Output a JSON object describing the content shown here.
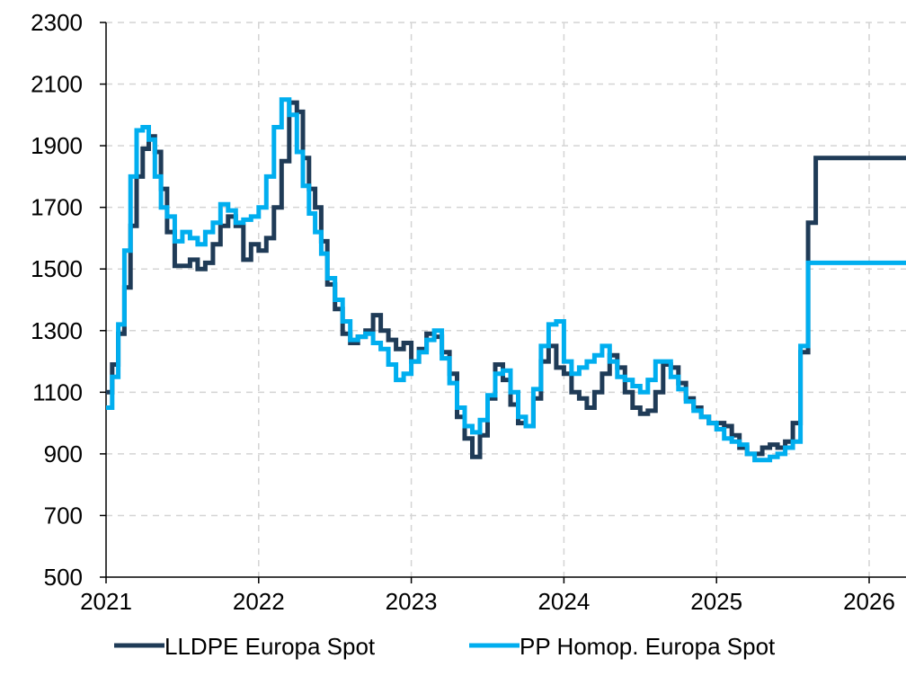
{
  "chart_data": {
    "type": "line",
    "title": "",
    "xlabel": "",
    "ylabel": "",
    "x_unit": "year",
    "xlim": [
      2021,
      2026.25
    ],
    "ylim": [
      500,
      2300
    ],
    "x_ticks": [
      2021,
      2022,
      2023,
      2024,
      2025,
      2026
    ],
    "x_tick_labels": [
      "2021",
      "2022",
      "2023",
      "2024",
      "2025",
      "2026"
    ],
    "y_ticks": [
      500,
      700,
      900,
      1100,
      1300,
      1500,
      1700,
      1900,
      2100,
      2300
    ],
    "y_tick_labels": [
      "500",
      "700",
      "900",
      "1100",
      "1300",
      "1500",
      "1700",
      "1900",
      "2100",
      "2300"
    ],
    "grid": "dashed",
    "legend_position": "bottom",
    "series": [
      {
        "name": "LLDPE Europa Spot",
        "color": "#1f3b57",
        "x": [
          2021.0,
          2021.04,
          2021.08,
          2021.12,
          2021.16,
          2021.2,
          2021.24,
          2021.28,
          2021.32,
          2021.36,
          2021.4,
          2021.45,
          2021.5,
          2021.55,
          2021.6,
          2021.65,
          2021.7,
          2021.75,
          2021.8,
          2021.85,
          2021.9,
          2021.95,
          2022.0,
          2022.05,
          2022.1,
          2022.15,
          2022.2,
          2022.25,
          2022.29,
          2022.33,
          2022.37,
          2022.41,
          2022.45,
          2022.5,
          2022.55,
          2022.6,
          2022.65,
          2022.7,
          2022.75,
          2022.8,
          2022.85,
          2022.9,
          2022.95,
          2023.0,
          2023.05,
          2023.1,
          2023.15,
          2023.2,
          2023.25,
          2023.3,
          2023.35,
          2023.4,
          2023.45,
          2023.5,
          2023.55,
          2023.6,
          2023.65,
          2023.7,
          2023.75,
          2023.8,
          2023.85,
          2023.9,
          2023.95,
          2024.0,
          2024.05,
          2024.1,
          2024.15,
          2024.2,
          2024.25,
          2024.3,
          2024.35,
          2024.4,
          2024.45,
          2024.5,
          2024.55,
          2024.6,
          2024.65,
          2024.7,
          2024.75,
          2024.8,
          2024.85,
          2024.9,
          2024.95,
          2025.0,
          2025.05,
          2025.1,
          2025.15,
          2025.2,
          2025.25,
          2025.3,
          2025.35,
          2025.4,
          2025.45,
          2025.5,
          2025.55,
          2025.6,
          2025.65,
          2025.7,
          2025.75,
          2025.8,
          2025.85,
          2025.9,
          2025.95,
          2026.0,
          2026.05,
          2026.1,
          2026.15,
          2026.19,
          2026.22,
          2026.25
        ],
        "y": [
          1100,
          1190,
          1290,
          1440,
          1640,
          1800,
          1890,
          1930,
          1880,
          1760,
          1620,
          1510,
          1510,
          1530,
          1500,
          1520,
          1580,
          1640,
          1670,
          1640,
          1530,
          1580,
          1560,
          1600,
          1700,
          1850,
          2040,
          2010,
          1860,
          1760,
          1700,
          1590,
          1450,
          1370,
          1290,
          1260,
          1280,
          1300,
          1350,
          1300,
          1270,
          1240,
          1260,
          1200,
          1240,
          1290,
          1280,
          1230,
          1160,
          1020,
          950,
          890,
          960,
          1080,
          1190,
          1140,
          1060,
          1000,
          990,
          1080,
          1200,
          1250,
          1180,
          1160,
          1100,
          1080,
          1050,
          1100,
          1160,
          1220,
          1180,
          1100,
          1050,
          1030,
          1040,
          1100,
          1190,
          1180,
          1130,
          1080,
          1050,
          1020,
          1000,
          1000,
          990,
          960,
          920,
          900,
          900,
          920,
          930,
          920,
          940,
          1000,
          1230,
          1650,
          1860,
          1860,
          1860,
          1860,
          1860,
          1860,
          1860,
          1860,
          1860,
          1860,
          1860,
          1860,
          1860,
          1860
        ]
      },
      {
        "name": "PP Homop. Europa Spot",
        "color": "#00aeef",
        "x": [
          2021.0,
          2021.04,
          2021.08,
          2021.12,
          2021.16,
          2021.2,
          2021.24,
          2021.28,
          2021.32,
          2021.36,
          2021.4,
          2021.45,
          2021.5,
          2021.55,
          2021.6,
          2021.65,
          2021.7,
          2021.75,
          2021.8,
          2021.85,
          2021.9,
          2021.95,
          2022.0,
          2022.05,
          2022.1,
          2022.15,
          2022.2,
          2022.25,
          2022.29,
          2022.33,
          2022.37,
          2022.41,
          2022.45,
          2022.5,
          2022.55,
          2022.6,
          2022.65,
          2022.7,
          2022.75,
          2022.8,
          2022.85,
          2022.9,
          2022.95,
          2023.0,
          2023.05,
          2023.1,
          2023.15,
          2023.2,
          2023.25,
          2023.3,
          2023.35,
          2023.4,
          2023.45,
          2023.5,
          2023.55,
          2023.6,
          2023.65,
          2023.7,
          2023.75,
          2023.8,
          2023.85,
          2023.9,
          2023.95,
          2024.0,
          2024.05,
          2024.1,
          2024.15,
          2024.2,
          2024.25,
          2024.3,
          2024.35,
          2024.4,
          2024.45,
          2024.5,
          2024.55,
          2024.6,
          2024.65,
          2024.7,
          2024.75,
          2024.8,
          2024.85,
          2024.9,
          2024.95,
          2025.0,
          2025.05,
          2025.1,
          2025.15,
          2025.2,
          2025.25,
          2025.3,
          2025.35,
          2025.4,
          2025.45,
          2025.5,
          2025.55,
          2025.6,
          2025.65,
          2025.7,
          2025.75,
          2025.8,
          2025.85,
          2025.9,
          2025.95,
          2026.0,
          2026.05,
          2026.1,
          2026.15,
          2026.19,
          2026.22,
          2026.25
        ],
        "y": [
          1050,
          1150,
          1320,
          1560,
          1800,
          1950,
          1960,
          1920,
          1800,
          1700,
          1670,
          1590,
          1620,
          1600,
          1580,
          1620,
          1650,
          1710,
          1690,
          1650,
          1660,
          1670,
          1700,
          1800,
          1960,
          2050,
          2000,
          1880,
          1770,
          1680,
          1620,
          1550,
          1470,
          1400,
          1330,
          1270,
          1280,
          1290,
          1260,
          1240,
          1190,
          1140,
          1160,
          1200,
          1230,
          1270,
          1300,
          1210,
          1130,
          1050,
          990,
          970,
          1010,
          1090,
          1160,
          1170,
          1100,
          1020,
          990,
          1110,
          1250,
          1320,
          1330,
          1200,
          1160,
          1180,
          1200,
          1220,
          1250,
          1200,
          1150,
          1140,
          1120,
          1100,
          1140,
          1200,
          1200,
          1150,
          1110,
          1070,
          1040,
          1020,
          1000,
          980,
          950,
          940,
          930,
          900,
          880,
          880,
          890,
          900,
          920,
          940,
          1250,
          1520,
          1520,
          1520,
          1520,
          1520,
          1520,
          1520,
          1520,
          1520,
          1520,
          1520,
          1520,
          1520,
          1520,
          1520
        ]
      }
    ]
  }
}
